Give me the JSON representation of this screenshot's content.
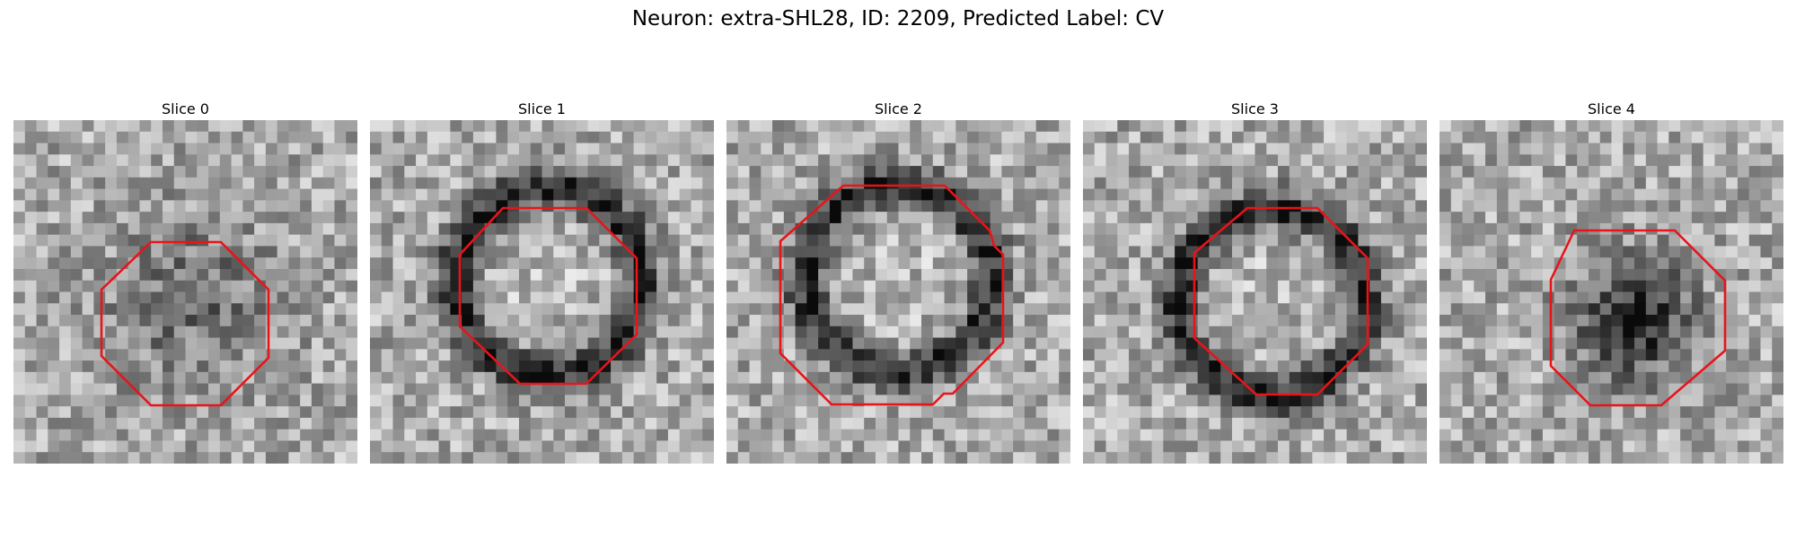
{
  "figure": {
    "title": "Neuron: extra-SHL28, ID: 2209, Predicted Label: CV",
    "contour_color": "#e8141a"
  },
  "panels": [
    {
      "title": "Slice 0",
      "pattern": "dim-center"
    },
    {
      "title": "Slice 1",
      "pattern": "dark-ring"
    },
    {
      "title": "Slice 2",
      "pattern": "dark-ring"
    },
    {
      "title": "Slice 3",
      "pattern": "dark-ring"
    },
    {
      "title": "Slice 4",
      "pattern": "dark-center"
    }
  ]
}
